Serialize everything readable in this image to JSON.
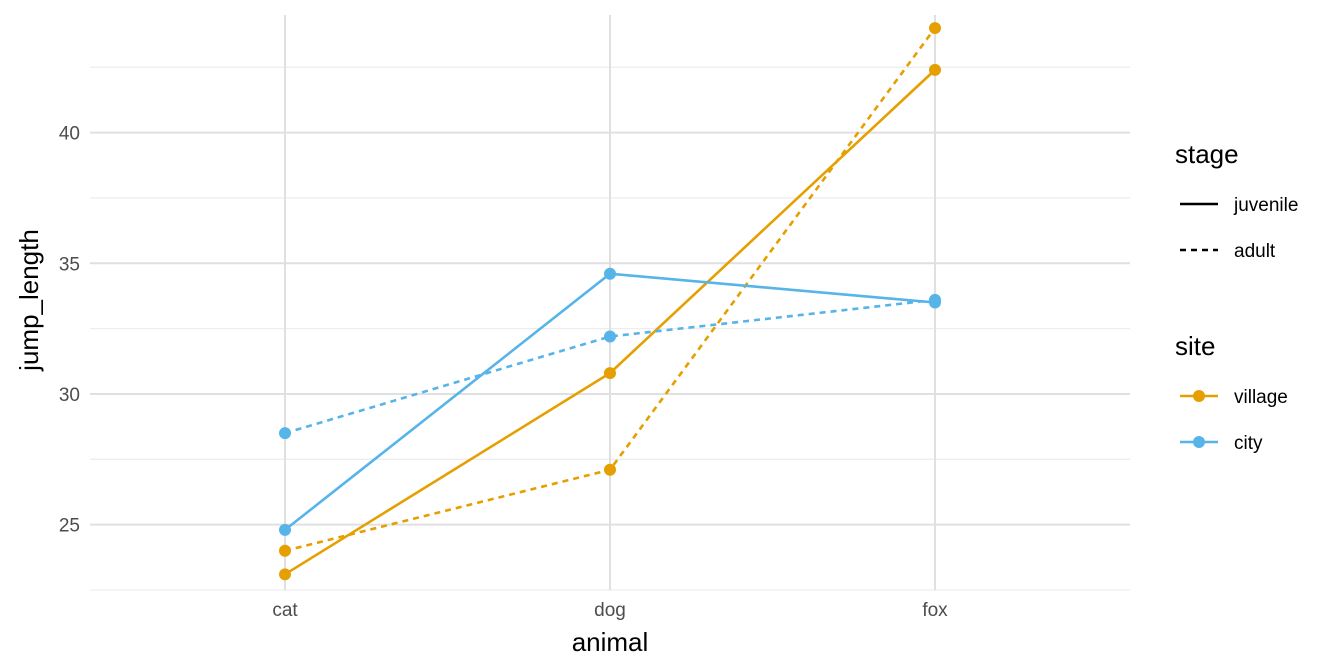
{
  "chart_data": {
    "type": "line",
    "x_label": "animal",
    "y_label": "jump_length",
    "categories": [
      "cat",
      "dog",
      "fox"
    ],
    "ylim": [
      22.5,
      44.5
    ],
    "y_ticks": [
      25,
      30,
      35,
      40
    ],
    "grid": true,
    "legend": {
      "position": "right",
      "stage": {
        "title": "stage",
        "entries": [
          {
            "label": "juvenile",
            "dash": "solid"
          },
          {
            "label": "adult",
            "dash": "dashed"
          }
        ]
      },
      "site": {
        "title": "site",
        "entries": [
          {
            "label": "village",
            "color": "#E69F00"
          },
          {
            "label": "city",
            "color": "#56B4E9"
          }
        ]
      }
    },
    "series": [
      {
        "site": "village",
        "stage": "juvenile",
        "color": "#E69F00",
        "dash": "solid",
        "values": [
          23.1,
          30.8,
          42.4
        ]
      },
      {
        "site": "village",
        "stage": "adult",
        "color": "#E69F00",
        "dash": "dashed",
        "values": [
          24.0,
          27.1,
          44.0
        ]
      },
      {
        "site": "city",
        "stage": "juvenile",
        "color": "#56B4E9",
        "dash": "solid",
        "values": [
          24.8,
          34.6,
          33.5
        ]
      },
      {
        "site": "city",
        "stage": "adult",
        "color": "#56B4E9",
        "dash": "dashed",
        "values": [
          28.5,
          32.2,
          33.6
        ]
      }
    ]
  }
}
